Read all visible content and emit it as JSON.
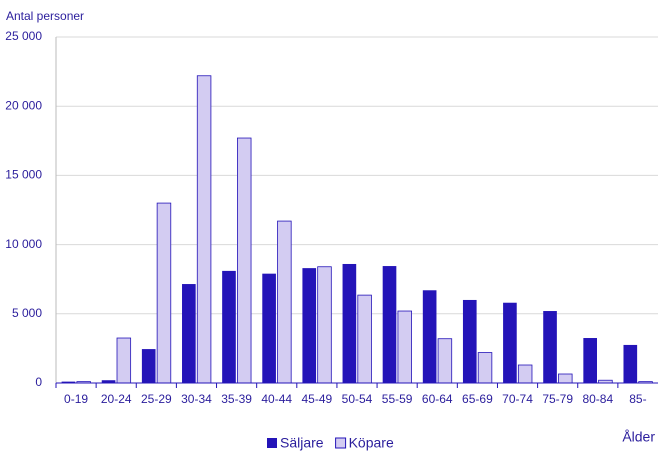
{
  "chart_data": {
    "type": "bar",
    "y_label": "Antal personer",
    "x_label": "Ålder",
    "categories": [
      "0-19",
      "20-24",
      "25-29",
      "30-34",
      "35-39",
      "40-44",
      "45-49",
      "50-54",
      "55-59",
      "60-64",
      "65-69",
      "70-74",
      "75-79",
      "80-84",
      "85-"
    ],
    "series": [
      {
        "name": "Säljare",
        "color": "#2414b8",
        "values": [
          100,
          200,
          2450,
          7150,
          8100,
          7900,
          8300,
          8600,
          8450,
          6700,
          6000,
          5800,
          5200,
          3250,
          2750
        ]
      },
      {
        "name": "Köpare",
        "color": "#d3ccf2",
        "values": [
          100,
          3250,
          13000,
          22200,
          17700,
          11700,
          8400,
          6350,
          5200,
          3200,
          2200,
          1300,
          650,
          200,
          100
        ]
      }
    ],
    "ylim": [
      0,
      25000
    ],
    "yticks": [
      0,
      {
        "value": 5000,
        "label": "5 000"
      },
      {
        "value": 10000,
        "label": "10 000"
      },
      {
        "value": 15000,
        "label": "15 000"
      },
      {
        "value": 20000,
        "label": "20 000"
      },
      {
        "value": 25000,
        "label": "25 000"
      }
    ],
    "grid": true,
    "legend": "bottom"
  }
}
